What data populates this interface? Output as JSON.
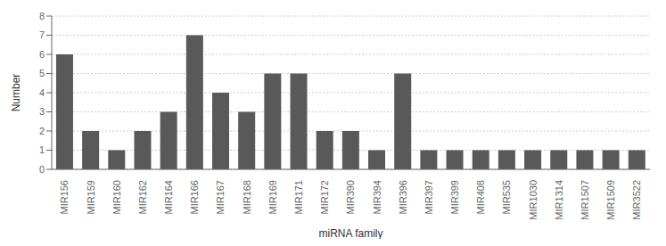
{
  "chart_data": {
    "type": "bar",
    "categories": [
      "MIR156",
      "MIR159",
      "MIR160",
      "MIR162",
      "MIR164",
      "MIR166",
      "MIR167",
      "MIR168",
      "MIR169",
      "MIR171",
      "MIR172",
      "MIR390",
      "MIR394",
      "MIR396",
      "MIR397",
      "MIR399",
      "MIR408",
      "MIR535",
      "MIR1030",
      "MIR1314",
      "MIR1507",
      "MIR1509",
      "MIR3522"
    ],
    "values": [
      6,
      2,
      1,
      2,
      3,
      7,
      4,
      3,
      5,
      5,
      2,
      2,
      1,
      5,
      1,
      1,
      1,
      1,
      1,
      1,
      1,
      1,
      1
    ],
    "color": "#595959",
    "xlabel": "miRNA family",
    "ylabel": "Number",
    "ylim": [
      0,
      8
    ],
    "yticks": [
      0,
      1,
      2,
      3,
      4,
      5,
      6,
      7,
      8
    ],
    "grid": true
  }
}
